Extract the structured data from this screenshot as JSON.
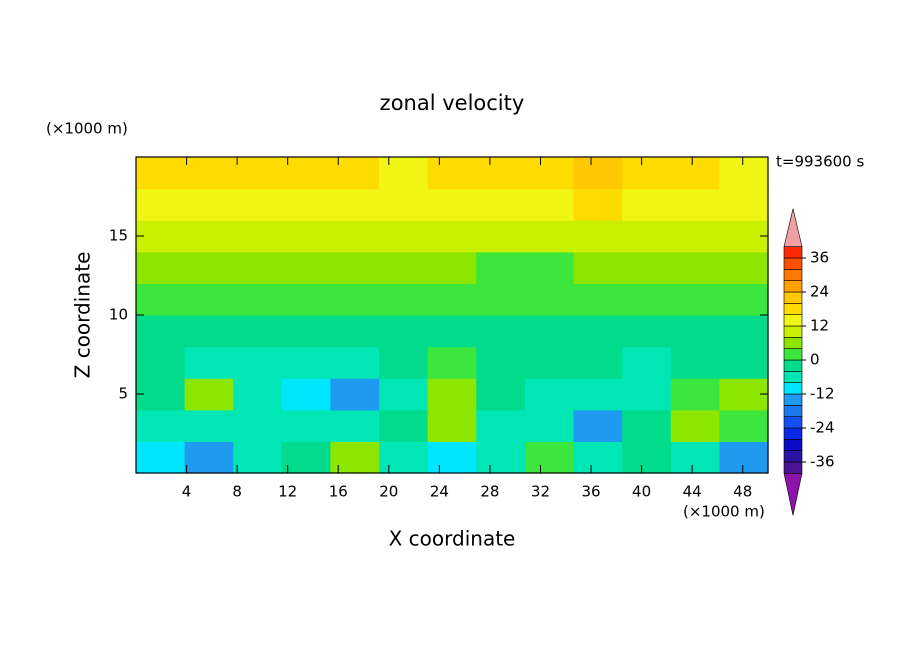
{
  "chart_data": {
    "type": "contour",
    "title": "zonal velocity",
    "xlabel": "X coordinate",
    "ylabel": "Z coordinate",
    "xunit": "(×1000 m)",
    "yunit": "(×1000 m)",
    "annotation": "t=993600 s",
    "xlim": [
      0,
      50
    ],
    "ylim": [
      0,
      20
    ],
    "xticks": [
      4,
      8,
      12,
      16,
      20,
      24,
      28,
      32,
      36,
      40,
      44,
      48
    ],
    "yticks": [
      5,
      10,
      15
    ],
    "levels": [
      -40,
      -36,
      -32,
      -28,
      -24,
      -20,
      -16,
      -12,
      -8,
      -4,
      0,
      4,
      8,
      12,
      16,
      20,
      24,
      28,
      32,
      36,
      40
    ],
    "colors": [
      "#4b1496",
      "#2814a0",
      "#0a0ac8",
      "#0a28e6",
      "#1450f0",
      "#1e78f0",
      "#1e9bf0",
      "#00e6ff",
      "#00e6b4",
      "#00dc8c",
      "#3ce63c",
      "#8ce600",
      "#c8f000",
      "#f0f514",
      "#ffdc00",
      "#ffc800",
      "#ffa000",
      "#ff7800",
      "#ff5000",
      "#ff2800"
    ],
    "under_color": "#8c14aa",
    "over_color": "#f0a0a0",
    "colorbar_ticks": [
      -36,
      -24,
      -12,
      0,
      12,
      24,
      36
    ],
    "z": [
      [
        -10,
        -14,
        -7,
        -2,
        4,
        -5,
        -10,
        -5,
        0,
        -7,
        -2,
        -6,
        -14
      ],
      [
        -8,
        -6,
        -5,
        -7,
        -8,
        -4,
        4,
        -6,
        -8,
        -13,
        -4,
        4,
        3
      ],
      [
        -4,
        4,
        -5,
        -9,
        -13,
        -6,
        5,
        -4,
        -6,
        -7,
        -8,
        2,
        5
      ],
      [
        -4,
        -5,
        -5,
        -5,
        -6,
        -3,
        2,
        -4,
        -4,
        -3,
        -5,
        -3,
        -2
      ],
      [
        -2,
        -2,
        -4,
        -2,
        -2,
        -3,
        -2,
        -2,
        -1,
        -2,
        -2,
        -3,
        -2
      ],
      [
        2,
        3,
        3,
        3,
        3,
        3,
        3,
        2,
        1,
        2,
        3,
        3,
        2
      ],
      [
        6,
        6,
        6,
        6,
        6,
        6,
        5,
        3,
        3,
        4,
        5,
        6,
        6
      ],
      [
        10,
        10,
        11,
        10,
        10,
        10,
        10,
        10,
        10,
        10,
        11,
        10,
        10
      ],
      [
        14,
        14,
        15,
        14,
        13,
        13,
        13,
        14,
        15,
        16,
        15,
        14,
        13
      ],
      [
        18,
        18,
        18,
        17,
        16,
        15,
        16,
        17,
        19,
        20,
        19,
        16,
        15
      ]
    ]
  }
}
